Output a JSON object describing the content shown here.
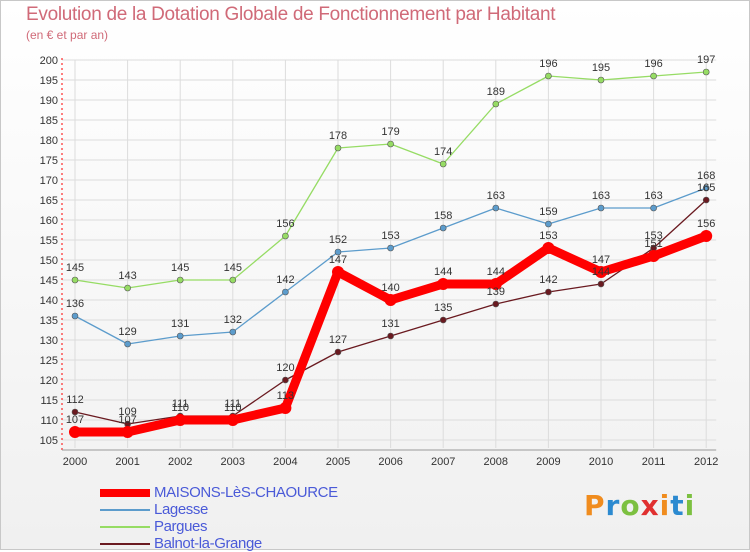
{
  "chart_data": {
    "type": "line",
    "title": "Evolution de la Dotation Globale de Fonctionnement par Habitant",
    "subtitle": "(en € et par an)",
    "xlabel": "",
    "ylabel": "",
    "categories": [
      "2000",
      "2001",
      "2002",
      "2003",
      "2004",
      "2005",
      "2006",
      "2007",
      "2008",
      "2009",
      "2010",
      "2011",
      "2012"
    ],
    "ylim": [
      105,
      200
    ],
    "yticks": [
      105,
      110,
      115,
      120,
      125,
      130,
      135,
      140,
      145,
      150,
      155,
      160,
      165,
      170,
      175,
      180,
      185,
      190,
      195,
      200
    ],
    "grid": true,
    "legend_position": "bottom-left",
    "series": [
      {
        "name": "Balnot-la-Grange",
        "color": "#6a1a20",
        "values": [
          112,
          109,
          111,
          111,
          120,
          127,
          131,
          135,
          139,
          142,
          144,
          153,
          165
        ]
      },
      {
        "name": "Lagesse",
        "color": "#5c9ccc",
        "values": [
          136,
          129,
          131,
          132,
          142,
          152,
          153,
          158,
          163,
          159,
          163,
          163,
          168
        ]
      },
      {
        "name": "Pargues",
        "color": "#96dc64",
        "values": [
          145,
          143,
          145,
          145,
          156,
          178,
          179,
          174,
          189,
          196,
          195,
          196,
          197
        ]
      },
      {
        "name": "MAISONS-LèS-CHAOURCE",
        "color": "#ff0000",
        "values": [
          107,
          107,
          110,
          110,
          113,
          147,
          140,
          144,
          144,
          153,
          147,
          151,
          156
        ]
      }
    ],
    "labels": [
      [
        "112",
        "109",
        "111",
        "111",
        "120",
        "127",
        "131",
        "135",
        "139",
        "142",
        "144",
        "153",
        "165"
      ],
      [
        "136",
        "129",
        "131",
        "132",
        "142",
        "152",
        "153",
        "158",
        "163",
        "159",
        "163",
        "163",
        "168"
      ],
      [
        "145",
        "143",
        "145",
        "145",
        "156",
        "178",
        "179",
        "174",
        "189",
        "196",
        "195",
        "196",
        "197"
      ],
      [
        "107",
        "107",
        "110",
        "110",
        "113",
        "147",
        "140",
        "144",
        "144",
        "153",
        "147",
        "151",
        "156"
      ]
    ]
  },
  "legend": [
    {
      "name": "MAISONS-LèS-CHAOURCE",
      "color": "#ff0000"
    },
    {
      "name": "Lagesse",
      "color": "#5c9ccc"
    },
    {
      "name": "Pargues",
      "color": "#96dc64"
    },
    {
      "name": "Balnot-la-Grange",
      "color": "#6a1a20"
    }
  ],
  "logo": {
    "letters": [
      "P",
      "r",
      "o",
      "x",
      "i",
      "t",
      "i"
    ],
    "colors": [
      "#f08c1e",
      "#2c8ad0",
      "#7cc040",
      "#e03030",
      "#f08c1e",
      "#2c8ad0",
      "#7cc040"
    ]
  }
}
